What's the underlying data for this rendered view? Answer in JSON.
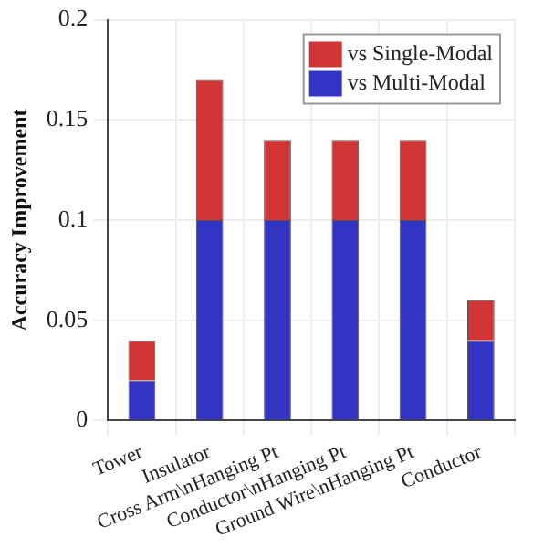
{
  "chart_data": {
    "type": "bar",
    "ylabel": "Accuracy Improvement",
    "stacked": true,
    "categories": [
      "Tower",
      "Insulator",
      "Cross Arm\\nHanging Pt",
      "Conductor\\nHanging Pt",
      "Ground Wire\\nHanging Pt",
      "Conductor"
    ],
    "series": [
      {
        "name": "vs Multi-Modal",
        "color": "#3333c4",
        "values": [
          0.02,
          0.1,
          0.1,
          0.1,
          0.1,
          0.04
        ]
      },
      {
        "name": "vs Single-Modal",
        "color": "#d03434",
        "values": [
          0.02,
          0.07,
          0.04,
          0.04,
          0.04,
          0.02
        ]
      }
    ],
    "ylim": [
      0,
      0.2
    ],
    "yticks": [
      0,
      0.05,
      0.1,
      0.15,
      0.2
    ],
    "grid": true,
    "legend": "top right"
  }
}
